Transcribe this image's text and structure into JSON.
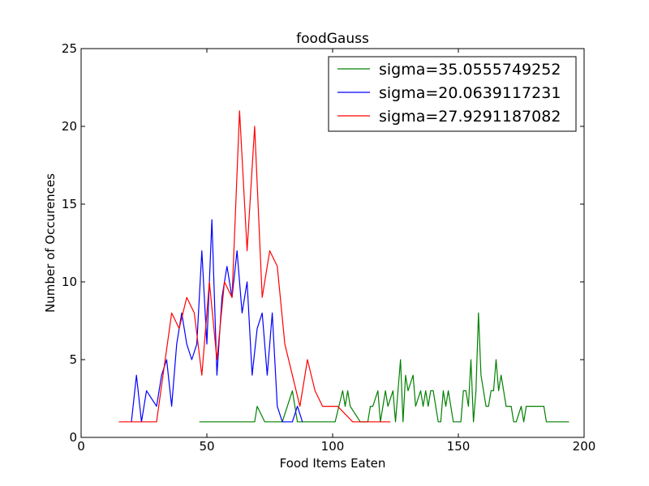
{
  "chart_data": {
    "type": "line",
    "title": "foodGauss",
    "xlabel": "Food Items Eaten",
    "ylabel": "Number of Occurences",
    "xlim": [
      0,
      200
    ],
    "ylim": [
      0,
      25
    ],
    "xticks": [
      "0",
      "50",
      "100",
      "150",
      "200"
    ],
    "yticks": [
      "0",
      "5",
      "10",
      "15",
      "20",
      "25"
    ],
    "grid": false,
    "legend_position": "top-right",
    "series": [
      {
        "name": "sigma=35.0555749252",
        "color": "#008000",
        "points": [
          [
            47,
            1
          ],
          [
            69,
            1
          ],
          [
            70,
            2
          ],
          [
            73,
            1
          ],
          [
            80,
            1
          ],
          [
            84,
            3
          ],
          [
            86,
            1
          ],
          [
            90,
            1
          ],
          [
            101,
            1
          ],
          [
            104,
            3
          ],
          [
            105,
            2
          ],
          [
            106,
            3
          ],
          [
            107,
            2
          ],
          [
            111,
            1
          ],
          [
            114,
            1
          ],
          [
            115,
            2
          ],
          [
            116,
            2
          ],
          [
            118,
            3
          ],
          [
            119,
            1
          ],
          [
            121,
            3
          ],
          [
            122,
            2
          ],
          [
            124,
            3
          ],
          [
            125,
            1
          ],
          [
            127,
            5
          ],
          [
            128,
            1
          ],
          [
            129,
            4
          ],
          [
            130,
            3
          ],
          [
            132,
            4
          ],
          [
            133,
            2
          ],
          [
            135,
            3
          ],
          [
            136,
            2
          ],
          [
            137,
            3
          ],
          [
            138,
            2
          ],
          [
            139,
            3
          ],
          [
            140,
            3
          ],
          [
            142,
            1
          ],
          [
            143,
            1
          ],
          [
            144,
            3
          ],
          [
            145,
            2
          ],
          [
            146,
            3
          ],
          [
            148,
            1
          ],
          [
            151,
            1
          ],
          [
            152,
            3
          ],
          [
            153,
            3
          ],
          [
            154,
            2
          ],
          [
            155,
            5
          ],
          [
            156,
            1
          ],
          [
            157,
            3
          ],
          [
            158,
            8
          ],
          [
            159,
            4
          ],
          [
            161,
            2
          ],
          [
            162,
            2
          ],
          [
            163,
            3
          ],
          [
            164,
            3
          ],
          [
            165,
            5
          ],
          [
            166,
            3
          ],
          [
            167,
            4
          ],
          [
            168,
            3
          ],
          [
            169,
            2
          ],
          [
            171,
            2
          ],
          [
            172,
            1
          ],
          [
            173,
            1
          ],
          [
            175,
            2
          ],
          [
            176,
            1
          ],
          [
            177,
            2
          ],
          [
            184,
            2
          ],
          [
            185,
            1
          ],
          [
            194,
            1
          ]
        ]
      },
      {
        "name": "sigma=20.0639117231",
        "color": "#0000ff",
        "points": [
          [
            20,
            1
          ],
          [
            22,
            4
          ],
          [
            24,
            1
          ],
          [
            26,
            3
          ],
          [
            30,
            2
          ],
          [
            32,
            4
          ],
          [
            34,
            5
          ],
          [
            36,
            2
          ],
          [
            38,
            6
          ],
          [
            40,
            8
          ],
          [
            42,
            6
          ],
          [
            44,
            5
          ],
          [
            46,
            6
          ],
          [
            48,
            12
          ],
          [
            50,
            6
          ],
          [
            52,
            14
          ],
          [
            54,
            4
          ],
          [
            56,
            9
          ],
          [
            58,
            11
          ],
          [
            60,
            9
          ],
          [
            62,
            12
          ],
          [
            64,
            8
          ],
          [
            66,
            10
          ],
          [
            68,
            4
          ],
          [
            70,
            7
          ],
          [
            72,
            8
          ],
          [
            74,
            4
          ],
          [
            76,
            8
          ],
          [
            78,
            2
          ],
          [
            80,
            1
          ],
          [
            84,
            1
          ],
          [
            86,
            2
          ],
          [
            88,
            1
          ]
        ]
      },
      {
        "name": "sigma=27.9291187082",
        "color": "#ff0000",
        "points": [
          [
            15,
            1
          ],
          [
            30,
            1
          ],
          [
            36,
            8
          ],
          [
            39,
            7
          ],
          [
            42,
            9
          ],
          [
            45,
            8
          ],
          [
            48,
            4
          ],
          [
            51,
            10
          ],
          [
            54,
            5
          ],
          [
            57,
            10
          ],
          [
            60,
            9
          ],
          [
            63,
            21
          ],
          [
            66,
            12
          ],
          [
            69,
            20
          ],
          [
            72,
            9
          ],
          [
            75,
            12
          ],
          [
            78,
            11
          ],
          [
            81,
            6
          ],
          [
            87,
            2
          ],
          [
            90,
            5
          ],
          [
            93,
            3
          ],
          [
            96,
            2
          ],
          [
            102,
            2
          ],
          [
            108,
            1
          ],
          [
            123,
            1
          ]
        ]
      }
    ]
  }
}
